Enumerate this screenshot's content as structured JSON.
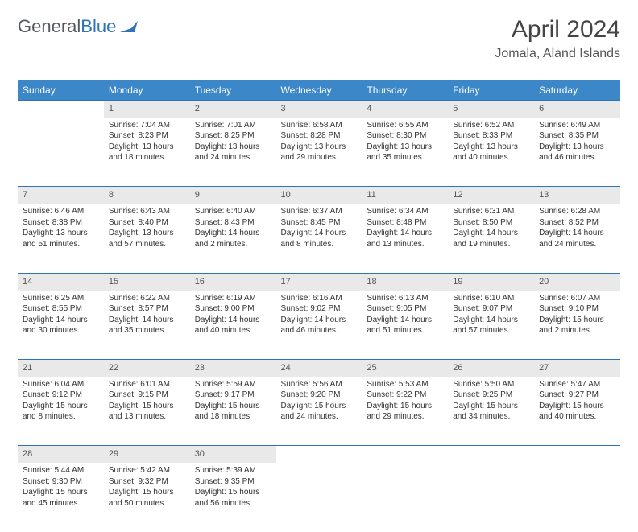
{
  "brand": {
    "part1": "General",
    "part2": "Blue"
  },
  "title": "April 2024",
  "location": "Jomala, Aland Islands",
  "colors": {
    "header_bg": "#3b87c8",
    "header_text": "#ffffff",
    "daynum_bg": "#e9e9e9",
    "row_divider": "#2e72b8",
    "body_text": "#333333",
    "brand_gray": "#555a61",
    "brand_blue": "#2e72b8"
  },
  "weekdays": [
    "Sunday",
    "Monday",
    "Tuesday",
    "Wednesday",
    "Thursday",
    "Friday",
    "Saturday"
  ],
  "weeks": [
    [
      null,
      {
        "n": "1",
        "sr": "Sunrise: 7:04 AM",
        "ss": "Sunset: 8:23 PM",
        "d1": "Daylight: 13 hours",
        "d2": "and 18 minutes."
      },
      {
        "n": "2",
        "sr": "Sunrise: 7:01 AM",
        "ss": "Sunset: 8:25 PM",
        "d1": "Daylight: 13 hours",
        "d2": "and 24 minutes."
      },
      {
        "n": "3",
        "sr": "Sunrise: 6:58 AM",
        "ss": "Sunset: 8:28 PM",
        "d1": "Daylight: 13 hours",
        "d2": "and 29 minutes."
      },
      {
        "n": "4",
        "sr": "Sunrise: 6:55 AM",
        "ss": "Sunset: 8:30 PM",
        "d1": "Daylight: 13 hours",
        "d2": "and 35 minutes."
      },
      {
        "n": "5",
        "sr": "Sunrise: 6:52 AM",
        "ss": "Sunset: 8:33 PM",
        "d1": "Daylight: 13 hours",
        "d2": "and 40 minutes."
      },
      {
        "n": "6",
        "sr": "Sunrise: 6:49 AM",
        "ss": "Sunset: 8:35 PM",
        "d1": "Daylight: 13 hours",
        "d2": "and 46 minutes."
      }
    ],
    [
      {
        "n": "7",
        "sr": "Sunrise: 6:46 AM",
        "ss": "Sunset: 8:38 PM",
        "d1": "Daylight: 13 hours",
        "d2": "and 51 minutes."
      },
      {
        "n": "8",
        "sr": "Sunrise: 6:43 AM",
        "ss": "Sunset: 8:40 PM",
        "d1": "Daylight: 13 hours",
        "d2": "and 57 minutes."
      },
      {
        "n": "9",
        "sr": "Sunrise: 6:40 AM",
        "ss": "Sunset: 8:43 PM",
        "d1": "Daylight: 14 hours",
        "d2": "and 2 minutes."
      },
      {
        "n": "10",
        "sr": "Sunrise: 6:37 AM",
        "ss": "Sunset: 8:45 PM",
        "d1": "Daylight: 14 hours",
        "d2": "and 8 minutes."
      },
      {
        "n": "11",
        "sr": "Sunrise: 6:34 AM",
        "ss": "Sunset: 8:48 PM",
        "d1": "Daylight: 14 hours",
        "d2": "and 13 minutes."
      },
      {
        "n": "12",
        "sr": "Sunrise: 6:31 AM",
        "ss": "Sunset: 8:50 PM",
        "d1": "Daylight: 14 hours",
        "d2": "and 19 minutes."
      },
      {
        "n": "13",
        "sr": "Sunrise: 6:28 AM",
        "ss": "Sunset: 8:52 PM",
        "d1": "Daylight: 14 hours",
        "d2": "and 24 minutes."
      }
    ],
    [
      {
        "n": "14",
        "sr": "Sunrise: 6:25 AM",
        "ss": "Sunset: 8:55 PM",
        "d1": "Daylight: 14 hours",
        "d2": "and 30 minutes."
      },
      {
        "n": "15",
        "sr": "Sunrise: 6:22 AM",
        "ss": "Sunset: 8:57 PM",
        "d1": "Daylight: 14 hours",
        "d2": "and 35 minutes."
      },
      {
        "n": "16",
        "sr": "Sunrise: 6:19 AM",
        "ss": "Sunset: 9:00 PM",
        "d1": "Daylight: 14 hours",
        "d2": "and 40 minutes."
      },
      {
        "n": "17",
        "sr": "Sunrise: 6:16 AM",
        "ss": "Sunset: 9:02 PM",
        "d1": "Daylight: 14 hours",
        "d2": "and 46 minutes."
      },
      {
        "n": "18",
        "sr": "Sunrise: 6:13 AM",
        "ss": "Sunset: 9:05 PM",
        "d1": "Daylight: 14 hours",
        "d2": "and 51 minutes."
      },
      {
        "n": "19",
        "sr": "Sunrise: 6:10 AM",
        "ss": "Sunset: 9:07 PM",
        "d1": "Daylight: 14 hours",
        "d2": "and 57 minutes."
      },
      {
        "n": "20",
        "sr": "Sunrise: 6:07 AM",
        "ss": "Sunset: 9:10 PM",
        "d1": "Daylight: 15 hours",
        "d2": "and 2 minutes."
      }
    ],
    [
      {
        "n": "21",
        "sr": "Sunrise: 6:04 AM",
        "ss": "Sunset: 9:12 PM",
        "d1": "Daylight: 15 hours",
        "d2": "and 8 minutes."
      },
      {
        "n": "22",
        "sr": "Sunrise: 6:01 AM",
        "ss": "Sunset: 9:15 PM",
        "d1": "Daylight: 15 hours",
        "d2": "and 13 minutes."
      },
      {
        "n": "23",
        "sr": "Sunrise: 5:59 AM",
        "ss": "Sunset: 9:17 PM",
        "d1": "Daylight: 15 hours",
        "d2": "and 18 minutes."
      },
      {
        "n": "24",
        "sr": "Sunrise: 5:56 AM",
        "ss": "Sunset: 9:20 PM",
        "d1": "Daylight: 15 hours",
        "d2": "and 24 minutes."
      },
      {
        "n": "25",
        "sr": "Sunrise: 5:53 AM",
        "ss": "Sunset: 9:22 PM",
        "d1": "Daylight: 15 hours",
        "d2": "and 29 minutes."
      },
      {
        "n": "26",
        "sr": "Sunrise: 5:50 AM",
        "ss": "Sunset: 9:25 PM",
        "d1": "Daylight: 15 hours",
        "d2": "and 34 minutes."
      },
      {
        "n": "27",
        "sr": "Sunrise: 5:47 AM",
        "ss": "Sunset: 9:27 PM",
        "d1": "Daylight: 15 hours",
        "d2": "and 40 minutes."
      }
    ],
    [
      {
        "n": "28",
        "sr": "Sunrise: 5:44 AM",
        "ss": "Sunset: 9:30 PM",
        "d1": "Daylight: 15 hours",
        "d2": "and 45 minutes."
      },
      {
        "n": "29",
        "sr": "Sunrise: 5:42 AM",
        "ss": "Sunset: 9:32 PM",
        "d1": "Daylight: 15 hours",
        "d2": "and 50 minutes."
      },
      {
        "n": "30",
        "sr": "Sunrise: 5:39 AM",
        "ss": "Sunset: 9:35 PM",
        "d1": "Daylight: 15 hours",
        "d2": "and 56 minutes."
      },
      null,
      null,
      null,
      null
    ]
  ]
}
